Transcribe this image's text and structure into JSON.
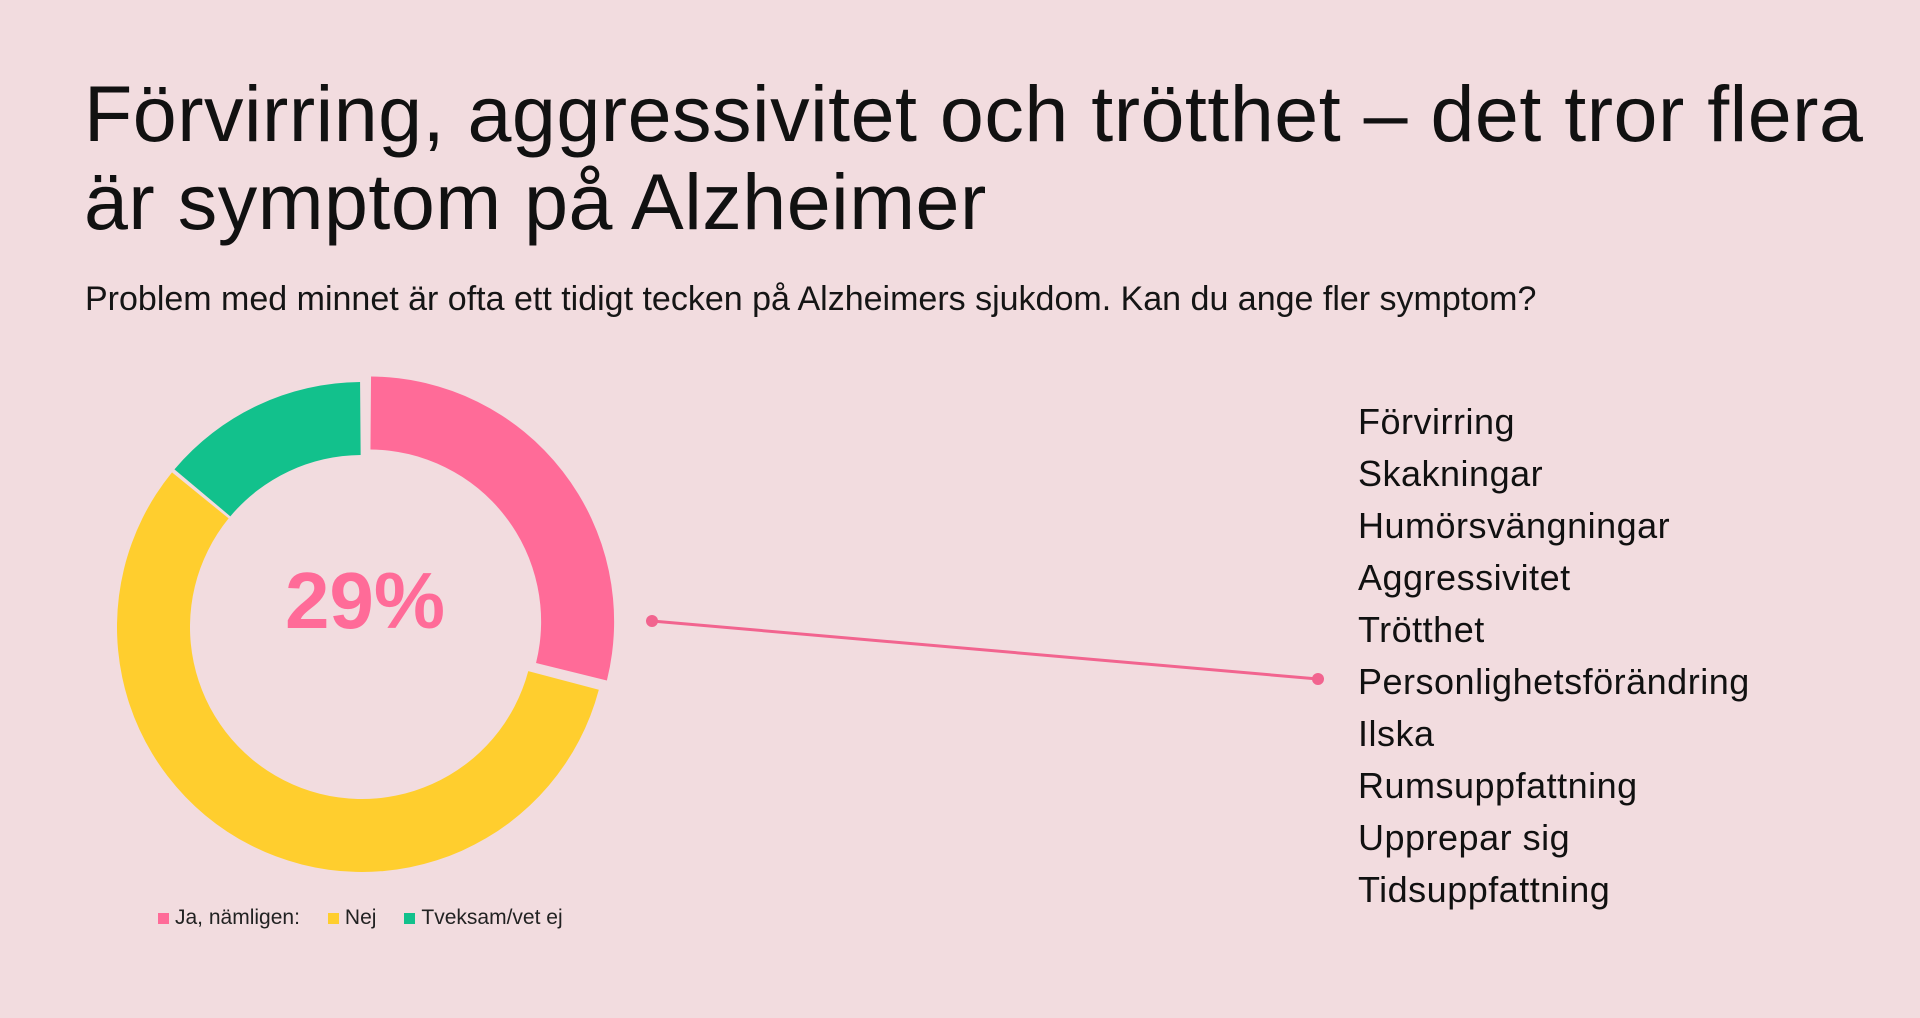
{
  "header": {
    "title": "Förvirring, aggressivitet och trötthet – det tror flera är symptom på Alzheimer",
    "subtitle": "Problem med minnet är ofta ett tidigt tecken på Alzheimers sjukdom. Kan du ange fler symptom?"
  },
  "chart_data": {
    "type": "pie",
    "variant": "donut",
    "center_label": "29%",
    "slices": [
      {
        "label": "Ja, nämligen:",
        "value": 29,
        "color": "#ff6b98"
      },
      {
        "label": "Nej",
        "value": 57,
        "color": "#ffce2e"
      },
      {
        "label": "Tveksam/vet ej",
        "value": 14,
        "color": "#12c18c"
      }
    ],
    "highlighted_slice": "Ja, nämligen:",
    "legend_position": "bottom",
    "annotation_list": [
      "Förvirring",
      "Skakningar",
      "Humörsvängningar",
      "Aggressivitet",
      "Trötthet",
      "Personlighetsförändring",
      "Ilska",
      "Rumsuppfattning",
      "Upprepar sig",
      "Tidsuppfattning"
    ]
  }
}
